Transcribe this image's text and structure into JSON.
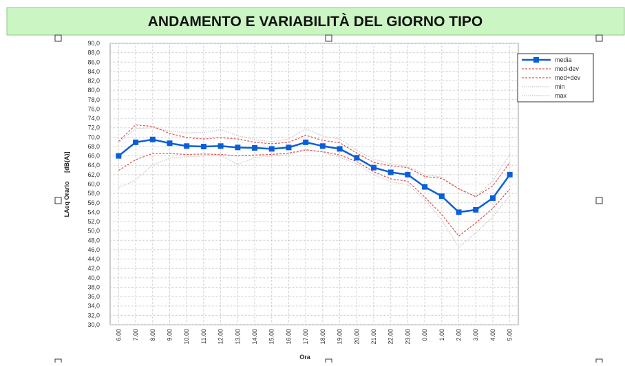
{
  "chart_data": {
    "type": "line",
    "title": "ANDAMENTO E VARIABILITÀ DEL GIORNO TIPO",
    "x_label": "Ora",
    "y_label": "LAeq Orario     [dB(A)]",
    "categories": [
      "6.00",
      "7.00",
      "8.00",
      "9.00",
      "10.00",
      "11.00",
      "12.00",
      "13.00",
      "14.00",
      "15.00",
      "16.00",
      "17.00",
      "18.00",
      "19.00",
      "20.00",
      "21.00",
      "22.00",
      "23.00",
      "0.00",
      "1.00",
      "2.00",
      "3.00",
      "4.00",
      "5.00"
    ],
    "series": [
      {
        "name": "media",
        "color": "#0a5fd8",
        "style": "solid",
        "marker": true,
        "values": [
          66.0,
          68.9,
          69.5,
          68.7,
          68.1,
          68.0,
          68.1,
          67.8,
          67.7,
          67.5,
          67.8,
          68.9,
          68.1,
          67.5,
          65.6,
          63.5,
          62.5,
          62.0,
          59.4,
          57.4,
          54.0,
          54.5,
          57.0,
          62.0
        ]
      },
      {
        "name": "med-dev",
        "color": "#e05050",
        "style": "dashed",
        "marker": false,
        "values": [
          62.9,
          65.2,
          66.5,
          66.5,
          66.3,
          66.4,
          66.3,
          66.0,
          66.2,
          66.3,
          66.6,
          67.3,
          66.9,
          66.2,
          64.8,
          62.6,
          61.1,
          60.6,
          57.2,
          53.5,
          48.9,
          51.7,
          54.8,
          58.9
        ]
      },
      {
        "name": "med+dev",
        "color": "#e05050",
        "style": "dashed",
        "marker": false,
        "values": [
          69.1,
          72.6,
          72.3,
          70.8,
          69.9,
          69.6,
          69.9,
          69.6,
          68.9,
          68.6,
          68.9,
          70.4,
          69.3,
          68.8,
          66.6,
          64.6,
          63.9,
          63.5,
          61.6,
          61.2,
          59.0,
          57.3,
          59.6,
          64.6
        ]
      },
      {
        "name": "min",
        "color": "#c8c8c8",
        "style": "dotted",
        "marker": false,
        "values": [
          59.2,
          60.8,
          64.1,
          65.5,
          65.8,
          66.0,
          66.1,
          64.2,
          65.6,
          66.0,
          66.3,
          67.2,
          66.8,
          65.7,
          64.3,
          62.0,
          60.5,
          59.9,
          56.7,
          52.3,
          46.5,
          49.6,
          53.0,
          57.6
        ]
      },
      {
        "name": "max",
        "color": "#c8c8c8",
        "style": "dotted",
        "marker": false,
        "values": [
          68.8,
          71.8,
          72.0,
          71.3,
          70.9,
          71.0,
          71.6,
          70.3,
          69.5,
          69.0,
          69.6,
          71.8,
          70.2,
          69.6,
          67.2,
          65.3,
          64.3,
          63.8,
          62.0,
          61.5,
          58.9,
          57.3,
          60.7,
          66.4
        ]
      }
    ],
    "ylim": [
      30,
      90
    ],
    "yticks": [
      {
        "value": 30,
        "label": "30,0"
      },
      {
        "value": 32,
        "label": "32,0"
      },
      {
        "value": 34,
        "label": "34,0"
      },
      {
        "value": 36,
        "label": "36,0"
      },
      {
        "value": 38,
        "label": "38,0"
      },
      {
        "value": 40,
        "label": "40,0"
      },
      {
        "value": 42,
        "label": "42,0"
      },
      {
        "value": 44,
        "label": "44,0"
      },
      {
        "value": 46,
        "label": "46,0"
      },
      {
        "value": 48,
        "label": "48,0"
      },
      {
        "value": 50,
        "label": "50,0"
      },
      {
        "value": 52,
        "label": "52,0"
      },
      {
        "value": 54,
        "label": "54,0"
      },
      {
        "value": 56,
        "label": "56,0"
      },
      {
        "value": 58,
        "label": "58,0"
      },
      {
        "value": 60,
        "label": "60,0"
      },
      {
        "value": 62,
        "label": "62,0"
      },
      {
        "value": 64,
        "label": "64,0"
      },
      {
        "value": 66,
        "label": "66,0"
      },
      {
        "value": 68,
        "label": "68,0"
      },
      {
        "value": 70,
        "label": "70,0"
      },
      {
        "value": 72,
        "label": "72,0"
      },
      {
        "value": 74,
        "label": "74,0"
      },
      {
        "value": 76,
        "label": "76,0"
      },
      {
        "value": 78,
        "label": "78,0"
      },
      {
        "value": 80,
        "label": "80,0"
      },
      {
        "value": 82,
        "label": "82,0"
      },
      {
        "value": 84,
        "label": "84,0"
      },
      {
        "value": 86,
        "label": "86,0"
      },
      {
        "value": 88,
        "label": "88,0"
      },
      {
        "value": 90,
        "label": "90,0"
      }
    ],
    "grid": true,
    "legend": "top-right"
  }
}
